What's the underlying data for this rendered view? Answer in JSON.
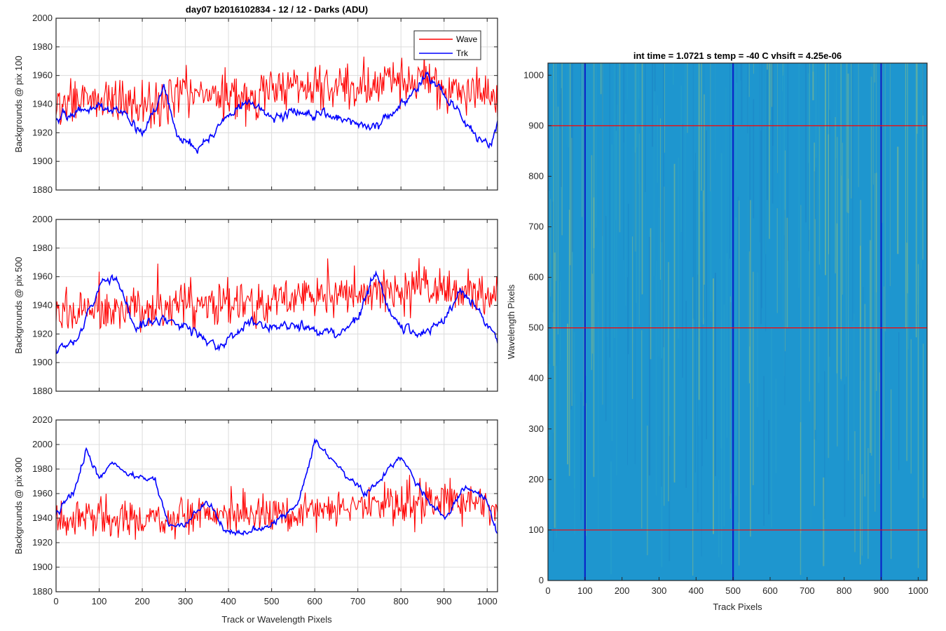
{
  "figure": {
    "background": "#ffffff"
  },
  "chart_data": [
    {
      "type": "line",
      "title": "day07 b2016102834 - 12 / 12 - Darks (ADU)",
      "xlabel": "",
      "ylabel": "Backgrounds @ pix 100",
      "xlim": [
        0,
        1024
      ],
      "ylim": [
        1880,
        2000
      ],
      "xticks": [
        0,
        100,
        200,
        300,
        400,
        500,
        600,
        700,
        800,
        900,
        1000
      ],
      "xticklabels": [],
      "yticks": [
        1880,
        1900,
        1920,
        1940,
        1960,
        1980,
        2000
      ],
      "grid": true,
      "legend": {
        "position": "top-right",
        "entries": [
          "Wave",
          "Trk"
        ]
      },
      "series": [
        {
          "name": "Wave",
          "color": "#ff0000",
          "knots": [
            [
              0,
              1940
            ],
            [
              100,
              1945
            ],
            [
              200,
              1938
            ],
            [
              300,
              1948
            ],
            [
              400,
              1945
            ],
            [
              500,
              1948
            ],
            [
              600,
              1950
            ],
            [
              700,
              1952
            ],
            [
              800,
              1955
            ],
            [
              900,
              1952
            ],
            [
              1024,
              1945
            ]
          ],
          "noise": 18,
          "ymin": 1897,
          "ymax": 1992
        },
        {
          "name": "Trk",
          "color": "#0000ff",
          "knots": [
            [
              0,
              1930
            ],
            [
              50,
              1935
            ],
            [
              100,
              1938
            ],
            [
              150,
              1935
            ],
            [
              200,
              1920
            ],
            [
              250,
              1950
            ],
            [
              280,
              1920
            ],
            [
              330,
              1908
            ],
            [
              400,
              1932
            ],
            [
              450,
              1942
            ],
            [
              500,
              1930
            ],
            [
              550,
              1935
            ],
            [
              650,
              1930
            ],
            [
              750,
              1925
            ],
            [
              820,
              1945
            ],
            [
              860,
              1962
            ],
            [
              900,
              1948
            ],
            [
              980,
              1915
            ],
            [
              1010,
              1912
            ],
            [
              1024,
              1930
            ]
          ],
          "noise": 6,
          "ymin": 1895,
          "ymax": 1975
        }
      ]
    },
    {
      "type": "line",
      "title": "",
      "xlabel": "",
      "ylabel": "Backgrounds @ pix 500",
      "xlim": [
        0,
        1024
      ],
      "ylim": [
        1880,
        2000
      ],
      "xticks": [
        0,
        100,
        200,
        300,
        400,
        500,
        600,
        700,
        800,
        900,
        1000
      ],
      "xticklabels": [],
      "yticks": [
        1880,
        1900,
        1920,
        1940,
        1960,
        1980,
        2000
      ],
      "grid": true,
      "series": [
        {
          "name": "Wave",
          "color": "#ff0000",
          "knots": [
            [
              0,
              1932
            ],
            [
              100,
              1938
            ],
            [
              200,
              1935
            ],
            [
              300,
              1942
            ],
            [
              400,
              1940
            ],
            [
              500,
              1942
            ],
            [
              600,
              1946
            ],
            [
              700,
              1948
            ],
            [
              800,
              1950
            ],
            [
              900,
              1952
            ],
            [
              1024,
              1945
            ]
          ],
          "noise": 16,
          "ymin": 1897,
          "ymax": 2000
        },
        {
          "name": "Trk",
          "color": "#0000ff",
          "knots": [
            [
              0,
              1910
            ],
            [
              50,
              1915
            ],
            [
              100,
              1955
            ],
            [
              140,
              1962
            ],
            [
              180,
              1925
            ],
            [
              250,
              1930
            ],
            [
              300,
              1925
            ],
            [
              380,
              1910
            ],
            [
              450,
              1930
            ],
            [
              500,
              1925
            ],
            [
              560,
              1925
            ],
            [
              650,
              1920
            ],
            [
              700,
              1930
            ],
            [
              740,
              1965
            ],
            [
              780,
              1930
            ],
            [
              850,
              1920
            ],
            [
              900,
              1930
            ],
            [
              940,
              1950
            ],
            [
              980,
              1935
            ],
            [
              1024,
              1915
            ]
          ],
          "noise": 6,
          "ymin": 1897,
          "ymax": 1982
        }
      ]
    },
    {
      "type": "line",
      "title": "",
      "xlabel": "Track or Wavelength Pixels",
      "ylabel": "Backgrounds @ pix 900",
      "xlim": [
        0,
        1024
      ],
      "ylim": [
        1880,
        2020
      ],
      "xticks": [
        0,
        100,
        200,
        300,
        400,
        500,
        600,
        700,
        800,
        900,
        1000
      ],
      "xticklabels": [
        "0",
        "100",
        "200",
        "300",
        "400",
        "500",
        "600",
        "700",
        "800",
        "900",
        "1000"
      ],
      "yticks": [
        1880,
        1900,
        1920,
        1940,
        1960,
        1980,
        2000,
        2020
      ],
      "grid": true,
      "series": [
        {
          "name": "Wave",
          "color": "#ff0000",
          "knots": [
            [
              0,
              1940
            ],
            [
              100,
              1938
            ],
            [
              200,
              1938
            ],
            [
              300,
              1942
            ],
            [
              400,
              1945
            ],
            [
              500,
              1945
            ],
            [
              600,
              1945
            ],
            [
              700,
              1950
            ],
            [
              800,
              1952
            ],
            [
              900,
              1955
            ],
            [
              1024,
              1948
            ]
          ],
          "noise": 16,
          "ymin": 1898,
          "ymax": 2000
        },
        {
          "name": "Trk",
          "color": "#0000ff",
          "knots": [
            [
              0,
              1945
            ],
            [
              40,
              1960
            ],
            [
              70,
              1995
            ],
            [
              100,
              1972
            ],
            [
              130,
              1985
            ],
            [
              180,
              1975
            ],
            [
              230,
              1970
            ],
            [
              260,
              1935
            ],
            [
              300,
              1935
            ],
            [
              350,
              1955
            ],
            [
              390,
              1930
            ],
            [
              450,
              1928
            ],
            [
              500,
              1935
            ],
            [
              560,
              1950
            ],
            [
              600,
              2002
            ],
            [
              650,
              1985
            ],
            [
              690,
              1968
            ],
            [
              720,
              1960
            ],
            [
              760,
              1975
            ],
            [
              800,
              1990
            ],
            [
              850,
              1960
            ],
            [
              900,
              1940
            ],
            [
              950,
              1965
            ],
            [
              1000,
              1955
            ],
            [
              1024,
              1925
            ]
          ],
          "noise": 5,
          "ymin": 1922,
          "ymax": 2005
        }
      ]
    },
    {
      "type": "heatmap",
      "title": "int time = 1.0721 s    temp = -40 C    vhsift = 4.25e-06",
      "xlabel": "Track Pixels",
      "ylabel": "Wavelength Pixels",
      "xlim": [
        0,
        1024
      ],
      "ylim": [
        0,
        1024
      ],
      "xticks": [
        0,
        100,
        200,
        300,
        400,
        500,
        600,
        700,
        800,
        900,
        1000
      ],
      "xticklabels": [
        "0",
        "100",
        "200",
        "300",
        "400",
        "500",
        "600",
        "700",
        "800",
        "900",
        "1000"
      ],
      "yticks": [
        0,
        100,
        200,
        300,
        400,
        500,
        600,
        700,
        800,
        900,
        1000
      ],
      "yticklabels": [
        "0",
        "100",
        "200",
        "300",
        "400",
        "500",
        "600",
        "700",
        "800",
        "900",
        "1000"
      ],
      "base_color": "#1e96cf",
      "highlight_color": "#a5c872",
      "column_markers": {
        "x": [
          100,
          500,
          900
        ],
        "color": "#0a24c8"
      },
      "row_markers": {
        "y": [
          100,
          500,
          900
        ],
        "color": "#ff0000"
      }
    }
  ]
}
